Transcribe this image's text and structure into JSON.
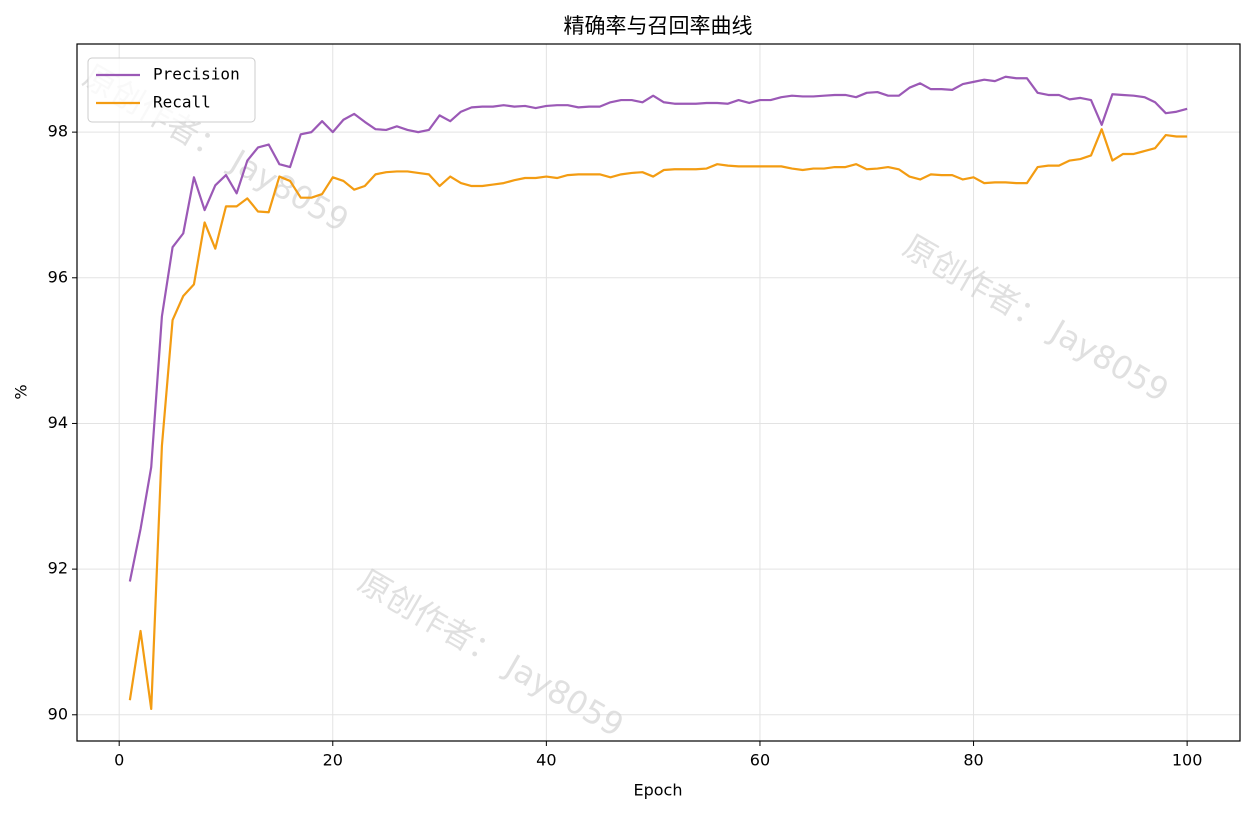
{
  "chart_data": {
    "type": "line",
    "title": "精确率与召回率曲线",
    "xlabel": "Epoch",
    "ylabel": "%",
    "x": [
      1,
      2,
      3,
      4,
      5,
      6,
      7,
      8,
      9,
      10,
      11,
      12,
      13,
      14,
      15,
      16,
      17,
      18,
      19,
      20,
      21,
      22,
      23,
      24,
      25,
      26,
      27,
      28,
      29,
      30,
      31,
      32,
      33,
      34,
      35,
      36,
      37,
      38,
      39,
      40,
      41,
      42,
      43,
      44,
      45,
      46,
      47,
      48,
      49,
      50,
      51,
      52,
      53,
      54,
      55,
      56,
      57,
      58,
      59,
      60,
      61,
      62,
      63,
      64,
      65,
      66,
      67,
      68,
      69,
      70,
      71,
      72,
      73,
      74,
      75,
      76,
      77,
      78,
      79,
      80,
      81,
      82,
      83,
      84,
      85,
      86,
      87,
      88,
      89,
      90,
      91,
      92,
      93,
      94,
      95,
      96,
      97,
      98,
      99,
      100
    ],
    "series": [
      {
        "name": "Precision",
        "color": "#9b59b6",
        "values": [
          91.83,
          92.55,
          93.4,
          95.47,
          96.42,
          96.61,
          97.38,
          96.93,
          97.27,
          97.41,
          97.16,
          97.61,
          97.79,
          97.83,
          97.56,
          97.52,
          97.97,
          98.0,
          98.15,
          98.0,
          98.17,
          98.25,
          98.14,
          98.04,
          98.03,
          98.08,
          98.03,
          98.0,
          98.03,
          98.23,
          98.15,
          98.28,
          98.34,
          98.35,
          98.35,
          98.37,
          98.35,
          98.36,
          98.33,
          98.36,
          98.37,
          98.37,
          98.34,
          98.35,
          98.35,
          98.41,
          98.44,
          98.44,
          98.41,
          98.5,
          98.41,
          98.39,
          98.39,
          98.39,
          98.4,
          98.4,
          98.39,
          98.44,
          98.4,
          98.44,
          98.44,
          98.48,
          98.5,
          98.49,
          98.49,
          98.5,
          98.51,
          98.51,
          98.48,
          98.54,
          98.55,
          98.5,
          98.5,
          98.61,
          98.67,
          98.59,
          98.59,
          98.58,
          98.66,
          98.69,
          98.72,
          98.7,
          98.76,
          98.74,
          98.74,
          98.54,
          98.51,
          98.51,
          98.45,
          98.47,
          98.44,
          98.1,
          98.52,
          98.51,
          98.5,
          98.48,
          98.41,
          98.26,
          98.28,
          98.32
        ]
      },
      {
        "name": "Recall",
        "color": "#f39c12",
        "values": [
          90.2,
          91.15,
          90.08,
          93.69,
          95.42,
          95.75,
          95.91,
          96.76,
          96.4,
          96.98,
          96.98,
          97.09,
          96.91,
          96.9,
          97.39,
          97.33,
          97.1,
          97.1,
          97.15,
          97.38,
          97.33,
          97.21,
          97.26,
          97.42,
          97.45,
          97.46,
          97.46,
          97.44,
          97.42,
          97.26,
          97.39,
          97.3,
          97.26,
          97.26,
          97.28,
          97.3,
          97.34,
          97.37,
          97.37,
          97.39,
          97.37,
          97.41,
          97.42,
          97.42,
          97.42,
          97.38,
          97.42,
          97.44,
          97.45,
          97.39,
          97.48,
          97.49,
          97.49,
          97.49,
          97.5,
          97.56,
          97.54,
          97.53,
          97.53,
          97.53,
          97.53,
          97.53,
          97.5,
          97.48,
          97.5,
          97.5,
          97.52,
          97.52,
          97.56,
          97.49,
          97.5,
          97.52,
          97.49,
          97.39,
          97.35,
          97.42,
          97.41,
          97.41,
          97.35,
          97.38,
          97.3,
          97.31,
          97.31,
          97.3,
          97.3,
          97.52,
          97.54,
          97.54,
          97.61,
          97.63,
          97.68,
          98.04,
          97.61,
          97.7,
          97.7,
          97.74,
          97.78,
          97.96,
          97.94,
          97.94
        ]
      }
    ],
    "xlim": [
      -3.95,
      104.95
    ],
    "xticks": [
      0,
      20,
      40,
      60,
      80,
      100
    ],
    "ylim": [
      89.64,
      99.21
    ],
    "yticks": [
      90,
      92,
      94,
      96,
      98
    ],
    "grid": true,
    "legend": "upper-left",
    "watermarks": [
      "原创作者： Jay8059",
      "原创作者： Jay8059",
      "原创作者： Jay8059"
    ]
  }
}
